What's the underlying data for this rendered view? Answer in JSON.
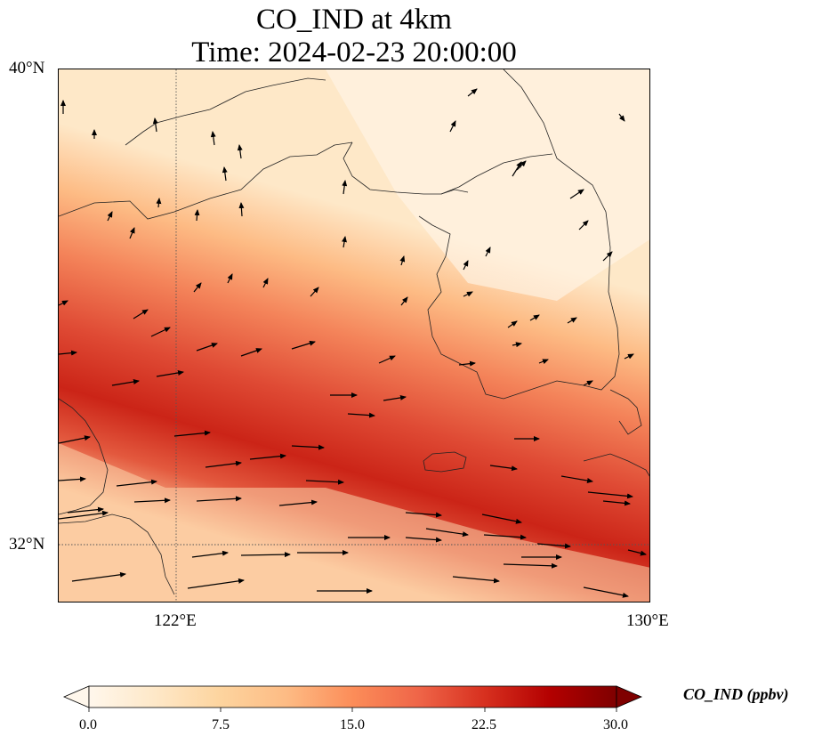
{
  "title": {
    "line1": "CO_IND at 4km",
    "line2": "Time: 2024-02-23 20:00:00"
  },
  "axes": {
    "lat_labels": [
      "40°N",
      "32°N"
    ],
    "lon_labels": [
      "122°E",
      "130°E"
    ],
    "lat_range": [
      31,
      40
    ],
    "lon_range": [
      120,
      130
    ],
    "gridlines": {
      "lat": [
        32
      ],
      "lon": [
        122
      ],
      "style": "dotted"
    }
  },
  "colorbar": {
    "label": "CO_IND (ppbv)",
    "ticks": [
      "0.0",
      "7.5",
      "15.0",
      "22.5",
      "30.0"
    ],
    "range": [
      0,
      30
    ],
    "colormap": "OrRd",
    "colors": [
      "#fff7ec",
      "#fee8c8",
      "#fdd49e",
      "#fdbb84",
      "#fc8d59",
      "#ef6548",
      "#d7301f",
      "#b30000",
      "#7f0000"
    ],
    "extend": "both"
  },
  "map": {
    "variable": "CO_IND",
    "level": "4km",
    "region": "Yellow Sea / Korean Peninsula",
    "field_description_values": {
      "max_band_value": 27,
      "background_value": 3
    }
  }
}
